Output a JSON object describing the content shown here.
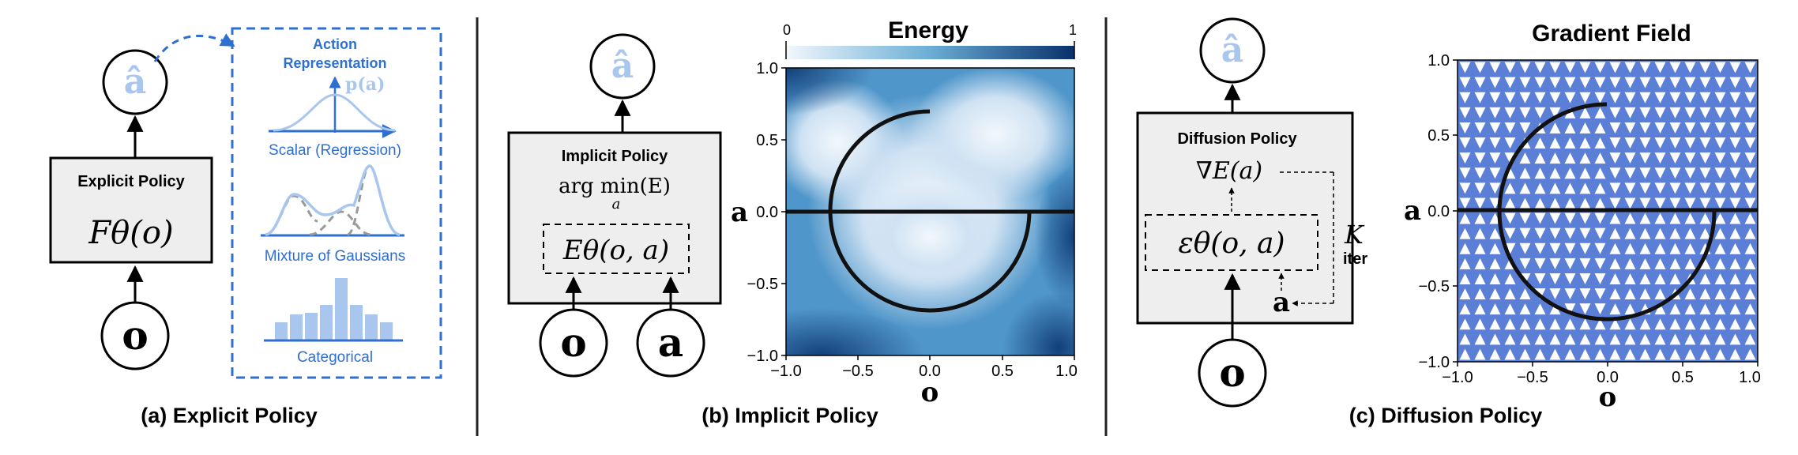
{
  "panel_a": {
    "caption": "(a) Explicit Policy",
    "box_title": "Explicit Policy",
    "box_formula": "Fθ(o)",
    "input_node": "o",
    "output_node": "â",
    "action_rep": {
      "title_line1": "Action",
      "title_line2": "Representation",
      "density_label": "p(a)",
      "items": [
        "Scalar (Regression)",
        "Mixture of Gaussians",
        "Categorical"
      ]
    }
  },
  "panel_b": {
    "caption": "(b) Implicit Policy",
    "box_title": "Implicit Policy",
    "argmin_text": "arg min(E)",
    "argmin_sub": "a",
    "energy_formula": "Eθ(o, a)",
    "input_nodes": [
      "o",
      "a"
    ],
    "output_node": "â",
    "plot": {
      "title": "Energy",
      "colorbar_min": "0",
      "colorbar_max": "1",
      "xlabel": "o",
      "ylabel": "a",
      "xticks": [
        "−1.0",
        "−0.5",
        "0.0",
        "0.5",
        "1.0"
      ],
      "yticks": [
        "1.0",
        "0.5",
        "0.0",
        "−0.5",
        "−1.0"
      ],
      "colors": {
        "low": "#f2f7fc",
        "high": "#08306b"
      }
    }
  },
  "panel_c": {
    "caption": "(c) Diffusion Policy",
    "box_title": "Diffusion Policy",
    "grad_formula": "∇E(a)",
    "noise_formula": "εθ(o, a)",
    "iter_symbol": "K",
    "iter_label": "iter",
    "input_node": "o",
    "small_a": "a",
    "output_node": "â",
    "plot": {
      "title": "Gradient Field",
      "xlabel": "o",
      "ylabel": "a",
      "xticks": [
        "−1.0",
        "−0.5",
        "0.0",
        "0.5",
        "1.0"
      ],
      "yticks": [
        "1.0",
        "0.5",
        "0.0",
        "−0.5",
        "−1.0"
      ],
      "colors": {
        "field": "#5b7fd6",
        "arrow": "#ffffff"
      }
    }
  }
}
